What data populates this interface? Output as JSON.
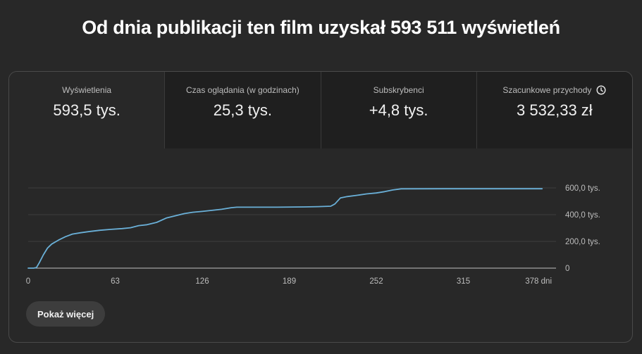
{
  "headline": "Od dnia publikacji ten film uzyskał 593 511 wyświetleń",
  "tabs": [
    {
      "label": "Wyświetlenia",
      "value": "593,5 tys."
    },
    {
      "label": "Czas oglądania (w godzinach)",
      "value": "25,3 tys."
    },
    {
      "label": "Subskrybenci",
      "value": "+4,8 tys."
    },
    {
      "label": "Szacunkowe przychody",
      "value": "3 532,33 zł",
      "icon": "clock-icon"
    }
  ],
  "chart_data": {
    "type": "line",
    "title": "",
    "xlabel": "",
    "ylabel": "",
    "x_ticks": [
      "0",
      "63",
      "126",
      "189",
      "252",
      "315",
      "378 dni"
    ],
    "y_ticks": [
      "0",
      "200,0 tys.",
      "400,0 tys.",
      "600,0 tys."
    ],
    "xlim": [
      0,
      378
    ],
    "ylim": [
      0,
      600000
    ],
    "grid": true,
    "line_color": "#6ab0d8",
    "series": [
      {
        "values": [
          [
            0,
            0
          ],
          [
            4,
            0
          ],
          [
            6,
            5000
          ],
          [
            8,
            40000
          ],
          [
            11,
            100000
          ],
          [
            14,
            150000
          ],
          [
            17,
            180000
          ],
          [
            22,
            210000
          ],
          [
            27,
            235000
          ],
          [
            32,
            255000
          ],
          [
            38,
            265000
          ],
          [
            45,
            275000
          ],
          [
            52,
            283000
          ],
          [
            60,
            290000
          ],
          [
            68,
            296000
          ],
          [
            74,
            302000
          ],
          [
            80,
            318000
          ],
          [
            86,
            325000
          ],
          [
            93,
            342000
          ],
          [
            100,
            375000
          ],
          [
            106,
            390000
          ],
          [
            113,
            408000
          ],
          [
            119,
            418000
          ],
          [
            126,
            424000
          ],
          [
            133,
            432000
          ],
          [
            140,
            440000
          ],
          [
            147,
            452000
          ],
          [
            151,
            456000
          ],
          [
            160,
            456000
          ],
          [
            180,
            456000
          ],
          [
            200,
            458000
          ],
          [
            210,
            460000
          ],
          [
            219,
            463000
          ],
          [
            222,
            480000
          ],
          [
            226,
            525000
          ],
          [
            231,
            535000
          ],
          [
            238,
            545000
          ],
          [
            245,
            555000
          ],
          [
            252,
            562000
          ],
          [
            258,
            572000
          ],
          [
            264,
            585000
          ],
          [
            270,
            593000
          ],
          [
            300,
            593500
          ],
          [
            340,
            593500
          ],
          [
            372,
            593500
          ]
        ]
      }
    ]
  },
  "show_more_label": "Pokaż więcej"
}
